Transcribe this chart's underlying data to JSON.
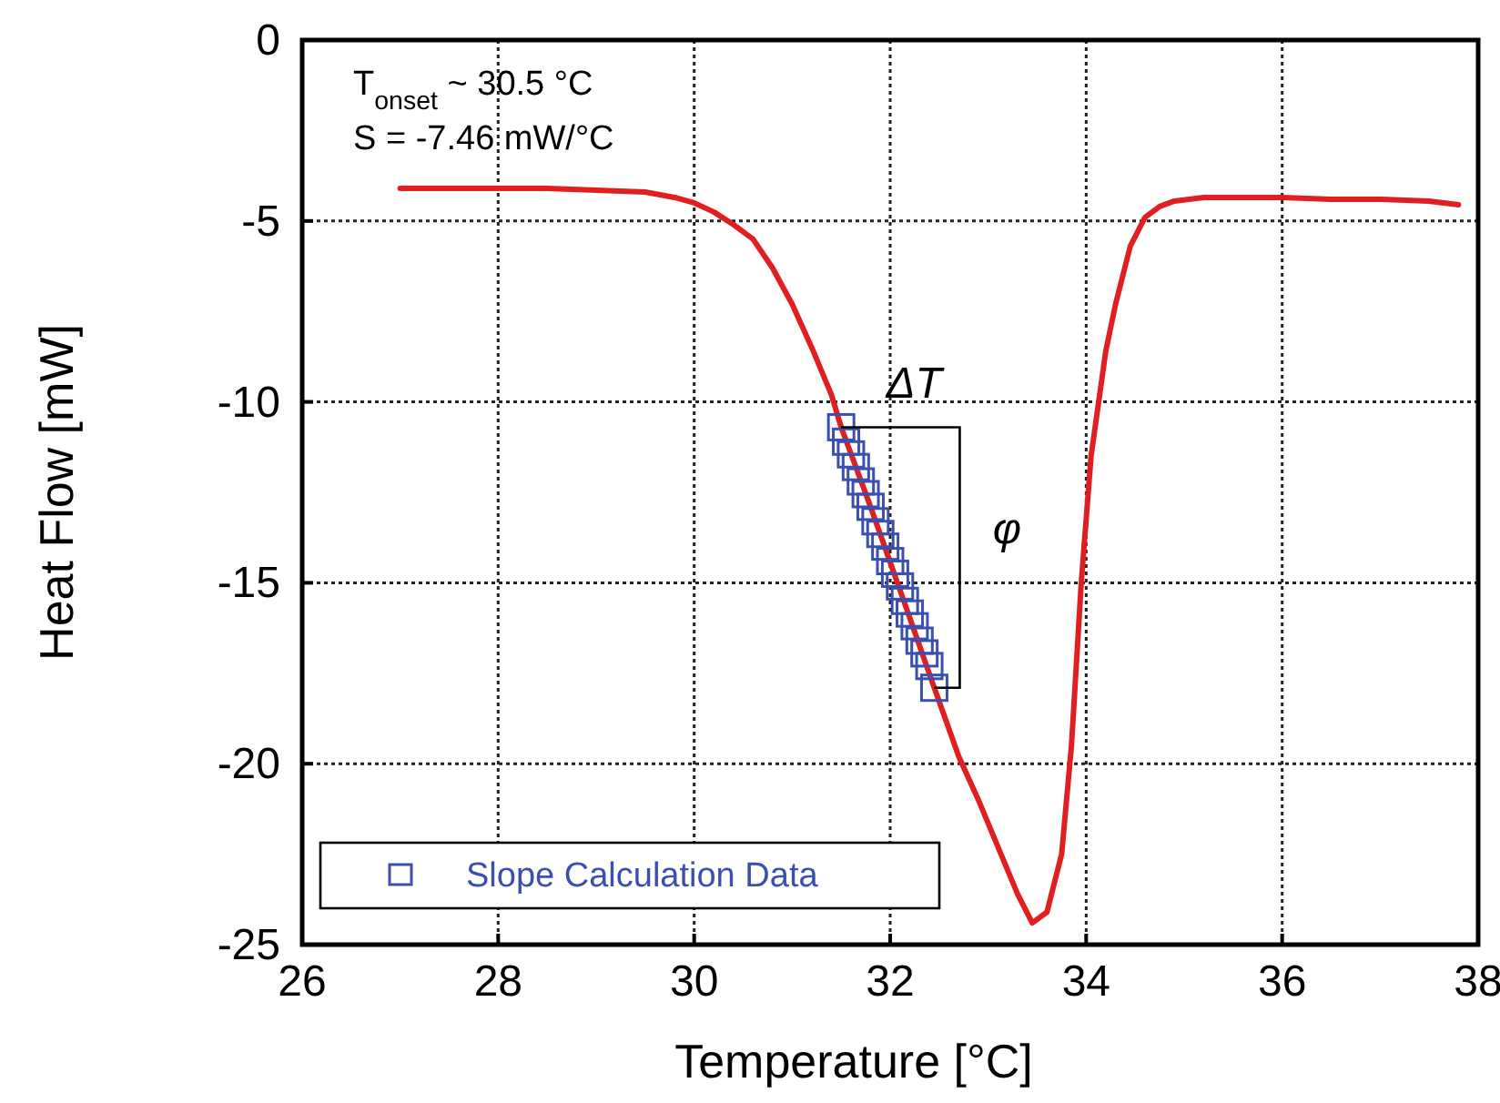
{
  "chart_data": {
    "type": "line",
    "xlabel": "Temperature [°C]",
    "ylabel": "Heat Flow [mW]",
    "xlim": [
      26,
      38
    ],
    "ylim": [
      -25,
      0
    ],
    "xticks": [
      26,
      28,
      30,
      32,
      34,
      36,
      38
    ],
    "yticks": [
      0,
      -5,
      -10,
      -15,
      -20,
      -25
    ],
    "grid": true,
    "legend": "bottom left",
    "line_style": "solid",
    "series": [
      {
        "color": "#e02020",
        "marker": "none",
        "x": [
          27.0,
          27.5,
          28.0,
          28.5,
          29.0,
          29.5,
          29.8,
          30.0,
          30.2,
          30.4,
          30.6,
          30.8,
          31.0,
          31.2,
          31.4,
          31.5,
          31.8,
          32.1,
          32.45,
          32.7,
          32.9,
          33.1,
          33.3,
          33.45,
          33.6,
          33.75,
          33.85,
          33.95,
          34.05,
          34.2,
          34.3,
          34.45,
          34.6,
          34.75,
          34.9,
          35.2,
          35.5,
          36.0,
          36.5,
          37.0,
          37.5,
          37.8
        ],
        "values": [
          -4.1,
          -4.1,
          -4.1,
          -4.1,
          -4.15,
          -4.2,
          -4.35,
          -4.5,
          -4.75,
          -5.1,
          -5.5,
          -6.3,
          -7.3,
          -8.5,
          -9.8,
          -10.7,
          -12.9,
          -15.2,
          -17.9,
          -19.8,
          -21.0,
          -22.3,
          -23.6,
          -24.4,
          -24.1,
          -22.5,
          -19.5,
          -15.0,
          -11.5,
          -8.6,
          -7.3,
          -5.7,
          -4.9,
          -4.6,
          -4.45,
          -4.35,
          -4.35,
          -4.35,
          -4.4,
          -4.4,
          -4.45,
          -4.55
        ]
      },
      {
        "type": "scatter",
        "name": "Slope Calculation Data",
        "color": "#3a4fb0",
        "marker": "square",
        "x": [
          31.5,
          31.55,
          31.6,
          31.65,
          31.7,
          31.75,
          31.8,
          31.85,
          31.9,
          31.95,
          32.0,
          32.05,
          32.1,
          32.15,
          32.2,
          32.25,
          32.3,
          32.35,
          32.4,
          32.45
        ],
        "values": [
          -10.7,
          -11.1,
          -11.45,
          -11.8,
          -12.2,
          -12.55,
          -12.9,
          -13.3,
          -13.65,
          -14.0,
          -14.4,
          -14.75,
          -15.1,
          -15.5,
          -15.85,
          -16.2,
          -16.6,
          -16.95,
          -17.3,
          -17.9
        ]
      }
    ],
    "annotations": [
      "T$_{onset}$ ~ 30.5 °C",
      "S = -7.46 mW/°C",
      {
        "text": "ΔT",
        "x": 31.5,
        "y": -10.7
      },
      "φ"
    ]
  }
}
